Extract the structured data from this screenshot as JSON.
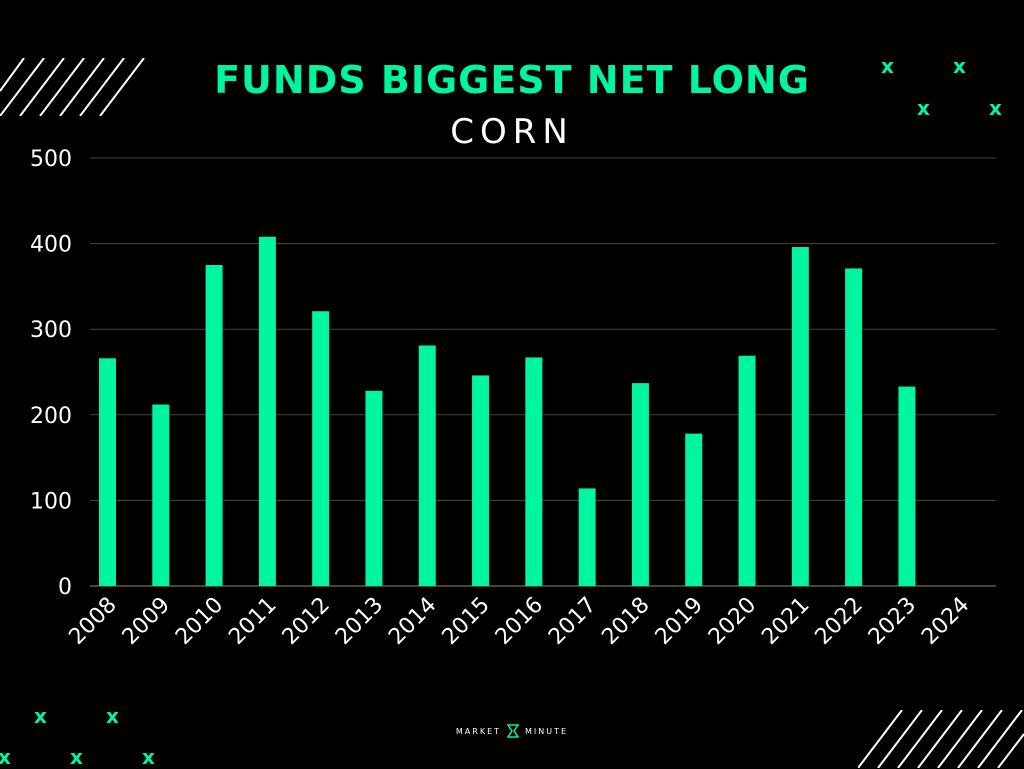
{
  "title": "FUNDS BIGGEST NET LONG",
  "subtitle": "CORN",
  "brand": {
    "left": "MARKET",
    "right": "MINUTE"
  },
  "decor": {
    "mark": "x",
    "icon": "hourglass-icon"
  },
  "colors": {
    "accent": "#00f5a0",
    "background": "#000000",
    "text": "#ffffff",
    "grid": "#444444"
  },
  "chart_data": {
    "type": "bar",
    "title": "FUNDS BIGGEST NET LONG",
    "subtitle": "CORN",
    "xlabel": "",
    "ylabel": "",
    "ylim": [
      0,
      500
    ],
    "yticks": [
      0,
      100,
      200,
      300,
      400,
      500
    ],
    "grid": true,
    "categories": [
      "2008",
      "2009",
      "2010",
      "2011",
      "2012",
      "2013",
      "2014",
      "2015",
      "2016",
      "2017",
      "2018",
      "2019",
      "2020",
      "2021",
      "2022",
      "2023",
      "2024"
    ],
    "values": [
      266,
      212,
      375,
      408,
      321,
      228,
      281,
      246,
      267,
      114,
      237,
      178,
      269,
      396,
      371,
      233,
      null
    ]
  }
}
